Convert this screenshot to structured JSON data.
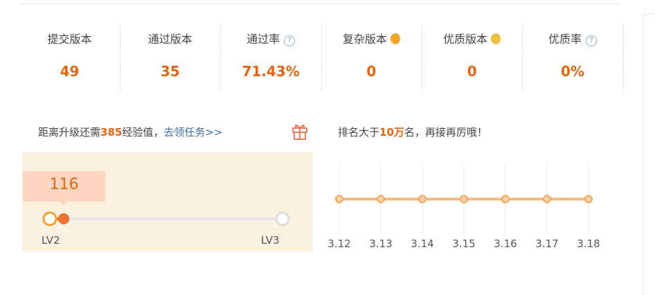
{
  "stats": [
    {
      "label": "提交版本",
      "value": "49"
    },
    {
      "label": "通过版本",
      "value": "35"
    },
    {
      "label": "通过率",
      "value": "71.43%"
    },
    {
      "label": "复杂版本",
      "value": "0"
    },
    {
      "label": "优质版本",
      "value": "0"
    },
    {
      "label": "优质率",
      "value": "0%"
    }
  ],
  "level": {
    "prefix": "距离升级还需",
    "points": "385",
    "suffix": "经验值，",
    "link": "去领任务>>",
    "current": "116",
    "from": "LV2",
    "to": "LV3"
  },
  "rank": {
    "prefix": "排名大于",
    "amount": "10万",
    "suffix": "名，再接再厉哦！"
  },
  "chart_data": {
    "type": "line",
    "categories": [
      "3.12",
      "3.13",
      "3.14",
      "3.15",
      "3.16",
      "3.17",
      "3.18"
    ],
    "values": [
      0,
      0,
      0,
      0,
      0,
      0,
      0
    ],
    "ylim": [
      -1,
      1
    ],
    "color": "#f5a55a",
    "grid": true
  }
}
